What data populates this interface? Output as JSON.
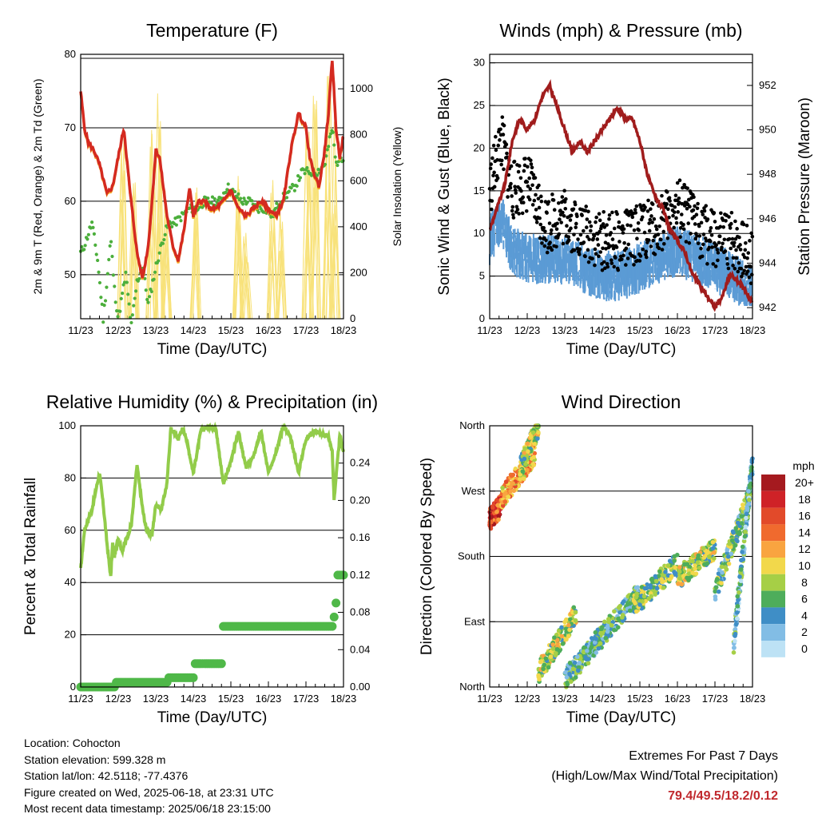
{
  "footer": {
    "location": "Location: Cohocton",
    "elevation": "Station elevation: 599.328 m",
    "latlon": "Station lat/lon: 42.5118; -77.4376",
    "created": "Figure created on Wed, 2025-06-18, at 23:31 UTC",
    "recent": "Most recent data timestamp: 2025/06/18 23:15:00",
    "extremes_title": "Extremes For Past 7 Days",
    "extremes_sub": "(High/Low/Max Wind/Total Precipitation)",
    "extremes_values": "79.4/49.5/18.2/0.12"
  },
  "colors": {
    "temp2m": "#d42a20",
    "temp9m": "#f5a623",
    "dewpoint": "#4caf3c",
    "solar": "#f8e27a",
    "wind": "#5b9bd5",
    "gust": "#000000",
    "pressure": "#a01c1c",
    "rh": "#92cc4a",
    "precip": "#4fb848"
  },
  "chart_data": [
    {
      "type": "line",
      "title": "Temperature (F)",
      "xlabel": "Time (Day/UTC)",
      "ylabel": "2m & 9m T (Red, Orange) & 2m Td (Green)",
      "y2label": "Solar Insolation (Yellow)",
      "x_ticks": [
        "11/23",
        "12/23",
        "13/23",
        "14/23",
        "15/23",
        "16/23",
        "17/23",
        "18/23"
      ],
      "xlim": [
        0,
        7
      ],
      "ylim": [
        44,
        80
      ],
      "y_ticks": [
        50,
        60,
        70,
        80
      ],
      "y2lim": [
        0,
        1150
      ],
      "y2_ticks": [
        0,
        200,
        400,
        600,
        800,
        1000
      ],
      "grid": true,
      "series": [
        {
          "key": "temp2m",
          "x": [
            0,
            0.1,
            0.2,
            0.35,
            0.5,
            0.7,
            0.85,
            1.0,
            1.15,
            1.3,
            1.5,
            1.65,
            1.8,
            1.9,
            2.0,
            2.1,
            2.3,
            2.45,
            2.6,
            2.75,
            2.9,
            3.0,
            3.15,
            3.3,
            3.45,
            3.6,
            3.8,
            4.0,
            4.2,
            4.4,
            4.6,
            4.8,
            5.0,
            5.2,
            5.4,
            5.6,
            5.8,
            6.0,
            6.1,
            6.2,
            6.35,
            6.5,
            6.6,
            6.7,
            6.8,
            6.9,
            7.0
          ],
          "y": [
            75,
            70,
            68,
            67,
            65,
            61,
            62,
            66,
            70,
            62,
            53,
            49.5,
            54,
            60,
            67,
            66,
            58,
            54,
            52,
            56,
            62,
            58,
            60,
            60,
            59,
            59,
            60,
            61.5,
            59,
            58,
            59,
            60,
            59,
            58,
            60,
            67,
            72,
            70,
            66,
            64,
            62,
            67,
            72,
            79.4,
            70,
            66,
            69
          ]
        },
        {
          "key": "dewpoint",
          "x": [
            0,
            0.1,
            0.3,
            0.45,
            0.6,
            0.7,
            0.8,
            0.9,
            1.0,
            1.1,
            1.2,
            1.35,
            1.5,
            1.65,
            1.8,
            2.0,
            2.2,
            2.35,
            2.5,
            2.7,
            2.9,
            3.1,
            3.3,
            3.5,
            3.7,
            3.9,
            4.1,
            4.3,
            4.5,
            4.7,
            4.9,
            5.1,
            5.3,
            5.5,
            5.7,
            5.9,
            6.1,
            6.3,
            6.5,
            6.7,
            6.8,
            6.9,
            7.0
          ],
          "y": [
            53,
            54,
            57,
            52,
            44,
            49,
            55,
            48,
            44,
            47,
            50,
            43,
            49,
            51,
            46,
            51,
            55,
            57,
            57,
            58,
            59,
            59,
            60,
            60,
            60,
            62,
            61,
            60,
            60,
            59,
            59,
            58,
            60,
            61,
            62,
            64,
            64,
            64,
            65,
            70,
            65,
            66,
            66
          ]
        }
      ],
      "solar_peaks": [
        {
          "x": 1.1,
          "v": 980
        },
        {
          "x": 1.4,
          "v": 700
        },
        {
          "x": 1.9,
          "v": 880
        },
        {
          "x": 2.1,
          "v": 1000
        },
        {
          "x": 2.3,
          "v": 600
        },
        {
          "x": 3.05,
          "v": 650
        },
        {
          "x": 4.2,
          "v": 700
        },
        {
          "x": 4.4,
          "v": 400
        },
        {
          "x": 5.1,
          "v": 640
        },
        {
          "x": 5.35,
          "v": 500
        },
        {
          "x": 6.05,
          "v": 880
        },
        {
          "x": 6.25,
          "v": 1000
        },
        {
          "x": 6.6,
          "v": 1080
        },
        {
          "x": 6.75,
          "v": 900
        }
      ]
    },
    {
      "type": "line",
      "title": "Winds (mph) & Pressure (mb)",
      "xlabel": "Time (Day/UTC)",
      "ylabel": "Sonic Wind & Gust (Blue, Black)",
      "y2label": "Station Pressure (Maroon)",
      "x_ticks": [
        "11/23",
        "12/23",
        "13/23",
        "14/23",
        "15/23",
        "16/23",
        "17/23",
        "18/23"
      ],
      "xlim": [
        0,
        7
      ],
      "ylim": [
        0,
        31
      ],
      "y_ticks": [
        0,
        5,
        10,
        15,
        20,
        25,
        30
      ],
      "y2lim": [
        941.5,
        953.4
      ],
      "y2_ticks": [
        942,
        944,
        946,
        948,
        950,
        952
      ],
      "grid": true,
      "series": [
        {
          "key": "pressure",
          "x": [
            0,
            0.2,
            0.4,
            0.6,
            0.8,
            1.0,
            1.2,
            1.4,
            1.6,
            1.8,
            2.0,
            2.2,
            2.4,
            2.6,
            2.8,
            3.0,
            3.2,
            3.4,
            3.6,
            3.8,
            4.0,
            4.2,
            4.4,
            4.6,
            4.8,
            5.0,
            5.2,
            5.4,
            5.6,
            5.8,
            6.0,
            6.2,
            6.4,
            6.6,
            6.8,
            7.0
          ],
          "y": [
            945.5,
            946.5,
            947.5,
            949.5,
            950.5,
            950,
            950.5,
            951.5,
            952,
            951,
            950,
            949,
            949.5,
            949,
            949.5,
            950,
            950.5,
            951,
            950.5,
            950.5,
            949.5,
            948,
            947,
            946.5,
            945.5,
            945,
            944.5,
            943.5,
            943,
            942.5,
            942,
            942.5,
            943.5,
            943.2,
            942.8,
            942.2
          ]
        }
      ],
      "wind_mean": [
        {
          "x": 0,
          "v": 9
        },
        {
          "x": 0.3,
          "v": 12
        },
        {
          "x": 0.6,
          "v": 8
        },
        {
          "x": 1.0,
          "v": 7
        },
        {
          "x": 1.5,
          "v": 7
        },
        {
          "x": 2.0,
          "v": 7
        },
        {
          "x": 2.5,
          "v": 6
        },
        {
          "x": 3.0,
          "v": 5
        },
        {
          "x": 3.5,
          "v": 5
        },
        {
          "x": 4.0,
          "v": 6
        },
        {
          "x": 4.5,
          "v": 7
        },
        {
          "x": 5.0,
          "v": 8
        },
        {
          "x": 5.5,
          "v": 7
        },
        {
          "x": 6.0,
          "v": 6
        },
        {
          "x": 6.5,
          "v": 5
        },
        {
          "x": 7.0,
          "v": 3
        }
      ],
      "gust_mean": [
        {
          "x": 0,
          "v": 14
        },
        {
          "x": 0.3,
          "v": 20
        },
        {
          "x": 0.6,
          "v": 14
        },
        {
          "x": 1.0,
          "v": 15
        },
        {
          "x": 1.5,
          "v": 10
        },
        {
          "x": 2.0,
          "v": 11
        },
        {
          "x": 2.5,
          "v": 9
        },
        {
          "x": 3.0,
          "v": 8
        },
        {
          "x": 3.5,
          "v": 8
        },
        {
          "x": 4.0,
          "v": 9
        },
        {
          "x": 4.5,
          "v": 10
        },
        {
          "x": 5.0,
          "v": 12
        },
        {
          "x": 5.5,
          "v": 10
        },
        {
          "x": 6.0,
          "v": 8
        },
        {
          "x": 6.5,
          "v": 8
        },
        {
          "x": 7.0,
          "v": 6
        }
      ]
    },
    {
      "type": "line",
      "title": "Relative Humidity (%) & Precipitation (in)",
      "xlabel": "Time (Day/UTC)",
      "ylabel": "Percent & Total Rainfall",
      "x_ticks": [
        "11/23",
        "12/23",
        "13/23",
        "14/23",
        "15/23",
        "16/23",
        "17/23",
        "18/23"
      ],
      "xlim": [
        0,
        7
      ],
      "ylim": [
        0,
        100
      ],
      "y_ticks": [
        0,
        20,
        40,
        60,
        80,
        100
      ],
      "y2lim": [
        0,
        0.28
      ],
      "y2_ticks": [
        "0.00",
        "0.04",
        "0.08",
        "0.12",
        "0.16",
        "0.20",
        "0.24"
      ],
      "grid": true,
      "series": [
        {
          "key": "rh",
          "x": [
            0,
            0.1,
            0.3,
            0.5,
            0.6,
            0.7,
            0.8,
            0.85,
            0.9,
            1.0,
            1.1,
            1.2,
            1.35,
            1.5,
            1.65,
            1.75,
            1.9,
            2.0,
            2.15,
            2.3,
            2.4,
            2.6,
            2.7,
            2.8,
            3.0,
            3.2,
            3.4,
            3.6,
            3.8,
            4.0,
            4.2,
            4.4,
            4.6,
            4.8,
            5.0,
            5.2,
            5.4,
            5.6,
            5.8,
            6.0,
            6.2,
            6.4,
            6.6,
            6.7,
            6.75,
            6.8,
            6.9,
            7.0
          ],
          "y": [
            45,
            60,
            68,
            82,
            70,
            55,
            42,
            55,
            50,
            57,
            52,
            56,
            62,
            85,
            68,
            60,
            58,
            70,
            68,
            78,
            99,
            95,
            99,
            96,
            82,
            98,
            100,
            99,
            78,
            86,
            98,
            84,
            88,
            98,
            82,
            90,
            100,
            95,
            82,
            95,
            98,
            97,
            96,
            90,
            72,
            80,
            96,
            90
          ]
        },
        {
          "key": "precip",
          "x": [
            0,
            0.9,
            0.95,
            2.3,
            2.35,
            3.0,
            3.05,
            3.75,
            3.8,
            6.7,
            6.75,
            6.8,
            6.85,
            7.0
          ],
          "y": [
            0,
            0,
            0.005,
            0.005,
            0.01,
            0.01,
            0.025,
            0.025,
            0.065,
            0.065,
            0.075,
            0.09,
            0.12,
            0.12
          ]
        }
      ]
    },
    {
      "type": "scatter",
      "title": "Wind Direction",
      "xlabel": "Time (Day/UTC)",
      "ylabel": "Direction (Colored By Speed)",
      "x_ticks": [
        "11/23",
        "12/23",
        "13/23",
        "14/23",
        "15/23",
        "16/23",
        "17/23",
        "18/23"
      ],
      "xlim": [
        0,
        7
      ],
      "ylim": [
        0,
        360
      ],
      "y_ticks": [
        "North",
        "East",
        "South",
        "West",
        "North"
      ],
      "grid": true,
      "legend": {
        "title": "mph",
        "labels": [
          "20+",
          "18",
          "16",
          "14",
          "12",
          "10",
          "8",
          "6",
          "4",
          "2",
          "0"
        ],
        "colors": [
          "#a51a1f",
          "#cf2227",
          "#e24a2a",
          "#f06a2e",
          "#f9a440",
          "#f2d84b",
          "#a6cf46",
          "#4ead5b",
          "#3f8ec6",
          "#82bde5",
          "#bde2f5"
        ]
      },
      "clusters": [
        {
          "x0": 0,
          "x1": 0.3,
          "y0": 230,
          "y1": 250,
          "speed": 16
        },
        {
          "x0": 0.3,
          "x1": 1.2,
          "y0": 260,
          "y1": 320,
          "speed": 12
        },
        {
          "x0": 0.8,
          "x1": 1.3,
          "y0": 300,
          "y1": 360,
          "speed": 8
        },
        {
          "x0": 1.3,
          "x1": 2.3,
          "y0": 20,
          "y1": 100,
          "speed": 8
        },
        {
          "x0": 2.0,
          "x1": 3.0,
          "y0": 10,
          "y1": 70,
          "speed": 5
        },
        {
          "x0": 2.8,
          "x1": 4.0,
          "y0": 60,
          "y1": 130,
          "speed": 5
        },
        {
          "x0": 3.8,
          "x1": 5.0,
          "y0": 110,
          "y1": 170,
          "speed": 7
        },
        {
          "x0": 5.0,
          "x1": 6.0,
          "y0": 150,
          "y1": 190,
          "speed": 8
        },
        {
          "x0": 6.0,
          "x1": 6.9,
          "y0": 130,
          "y1": 260,
          "speed": 6
        },
        {
          "x0": 6.5,
          "x1": 7.0,
          "y0": 60,
          "y1": 310,
          "speed": 4
        }
      ]
    }
  ]
}
